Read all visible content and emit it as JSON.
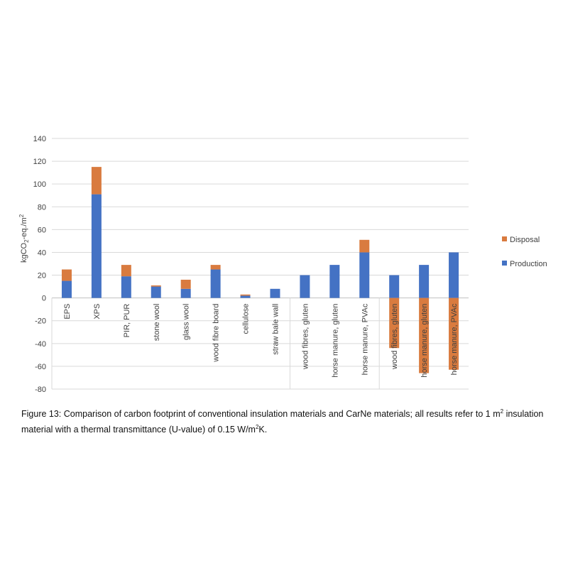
{
  "chart_data": {
    "type": "bar",
    "stacked": true,
    "categories": [
      "EPS",
      "XPS",
      "PIR, PUR",
      "stone wool",
      "glass wool",
      "wood fibre board",
      "cellulose",
      "straw bale wall",
      "wood fibres, gluten",
      "horse manure, gluten",
      "horse manure, PVAc",
      "wood fibres, gluten",
      "horse manure, gluten",
      "horse manure, PVAc"
    ],
    "series": [
      {
        "name": "Production",
        "color": "#4472C4",
        "values": [
          15,
          91,
          19,
          10,
          8,
          25,
          2,
          8,
          20,
          29,
          40,
          20,
          29,
          40
        ]
      },
      {
        "name": "Disposal",
        "color": "#D97B3F",
        "values": [
          10,
          24,
          10,
          1,
          8,
          4,
          1,
          0,
          0,
          0,
          11,
          -44,
          -66,
          -63
        ]
      }
    ],
    "ylim": [
      -80,
      140
    ],
    "yticks": [
      140,
      120,
      100,
      80,
      60,
      40,
      20,
      0,
      -20,
      -40,
      -60,
      -80
    ],
    "ylabel_main": "kgCO",
    "ylabel_sub": "2",
    "ylabel_rest": "-eq./m",
    "ylabel_sup": "2",
    "legend": [
      "Disposal",
      "Production"
    ],
    "legend_position": "right",
    "grid": true
  },
  "caption": {
    "part1": "Figure 13: Comparison of carbon footprint of conventional insulation materials and CarNe materials; all results refer to 1 m",
    "sup1": "2",
    "part2": " insulation material with a thermal transmittance (U-value) of 0.15 W/m",
    "sup2": "2",
    "part3": "K."
  }
}
